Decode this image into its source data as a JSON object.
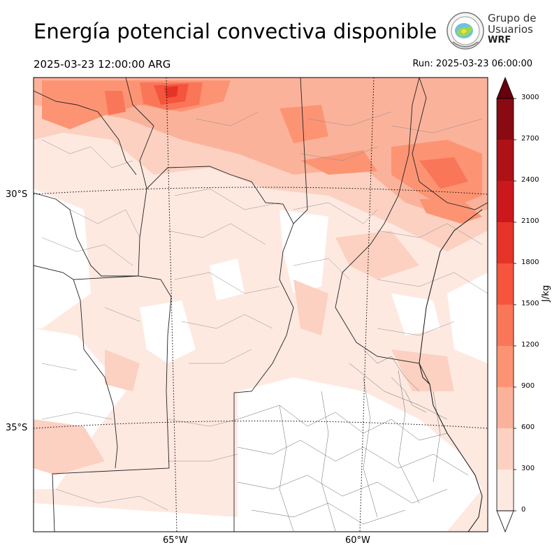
{
  "header": {
    "title": "Energía potencial convectiva disponible",
    "valid_time": "2025-03-23 12:00:00 ARG",
    "run_time": "Run: 2025-03-23 06:00:00"
  },
  "logo": {
    "line1": "Grupo de",
    "line2": "Usuarios",
    "line3": "WRF"
  },
  "map": {
    "lat_labels": [
      "30°S",
      "35°S"
    ],
    "lon_labels": [
      "65°W",
      "60°W"
    ],
    "colormap": "Reds",
    "fill_colors": {
      "0-300": "#fee9e1",
      "300-600": "#fcd1c1",
      "600-900": "#fbb29b",
      "900-1200": "#fc9474",
      "1200-1500": "#fa7659",
      "1500-1800": "#f5553d",
      "1800-2100": "#e63328",
      "2100-2400": "#cb181d",
      "2400-2700": "#ae1217",
      "2700-3000": "#8a0a12",
      "over": "#67000d"
    }
  },
  "colorbar": {
    "ticks": [
      "0",
      "300",
      "600",
      "900",
      "1200",
      "1500",
      "1800",
      "2100",
      "2400",
      "2700",
      "3000"
    ],
    "unit": "J/kg",
    "colors": [
      "#fee9e1",
      "#fcd1c1",
      "#fbb29b",
      "#fc9474",
      "#fa7659",
      "#f5553d",
      "#e63328",
      "#cb181d",
      "#ae1217",
      "#8a0a12"
    ],
    "over_color": "#67000d"
  }
}
